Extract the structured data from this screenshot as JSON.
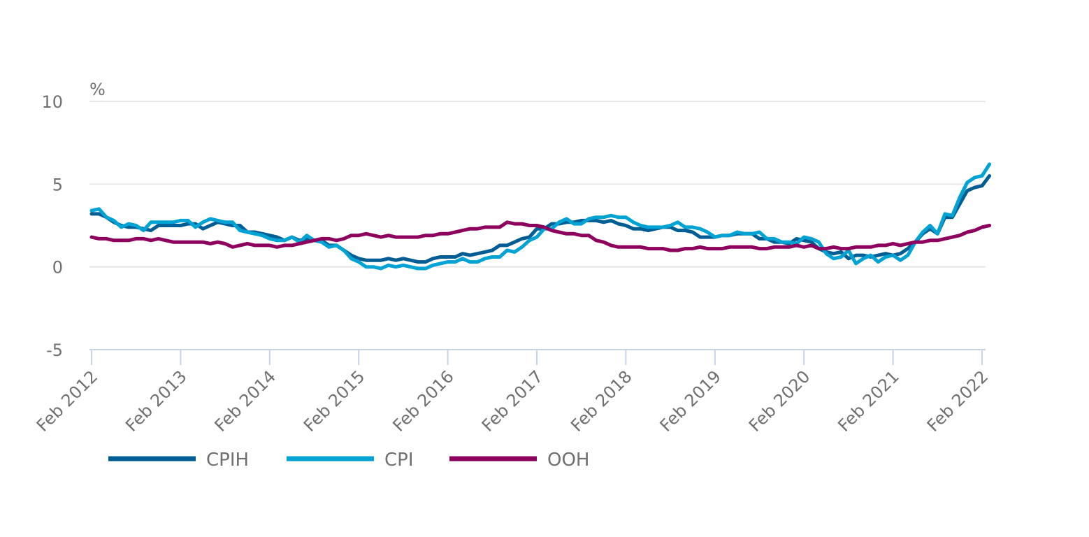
{
  "chart_data": {
    "type": "line",
    "title": "",
    "ylabel": "%",
    "xlabel": "",
    "ylim": [
      -5,
      10
    ],
    "yticks": [
      10,
      5,
      0,
      -5
    ],
    "xlim": [
      0,
      120
    ],
    "xticks": [
      {
        "label": "Feb 2012",
        "index": 0
      },
      {
        "label": "Feb 2013",
        "index": 12
      },
      {
        "label": "Feb 2014",
        "index": 24
      },
      {
        "label": "Feb 2015",
        "index": 36
      },
      {
        "label": "Feb 2016",
        "index": 48
      },
      {
        "label": "Feb 2017",
        "index": 60
      },
      {
        "label": "Feb 2018",
        "index": 72
      },
      {
        "label": "Feb 2019",
        "index": 84
      },
      {
        "label": "Feb 2020",
        "index": 96
      },
      {
        "label": "Feb 2021",
        "index": 108
      },
      {
        "label": "Feb 2022",
        "index": 120
      }
    ],
    "grid": true,
    "legend_position": "bottom-left",
    "series": [
      {
        "name": "CPIH",
        "color": "#005e94",
        "values": [
          3.2,
          3.2,
          3.0,
          2.7,
          2.5,
          2.4,
          2.4,
          2.3,
          2.2,
          2.5,
          2.5,
          2.5,
          2.5,
          2.6,
          2.6,
          2.3,
          2.5,
          2.7,
          2.6,
          2.5,
          2.5,
          2.1,
          2.1,
          2.0,
          1.9,
          1.8,
          1.6,
          1.8,
          1.6,
          1.7,
          1.6,
          1.6,
          1.3,
          1.3,
          1.0,
          0.7,
          0.5,
          0.4,
          0.4,
          0.4,
          0.5,
          0.4,
          0.5,
          0.4,
          0.3,
          0.3,
          0.5,
          0.6,
          0.6,
          0.6,
          0.8,
          0.7,
          0.8,
          0.9,
          1.0,
          1.3,
          1.3,
          1.5,
          1.7,
          1.8,
          2.3,
          2.3,
          2.6,
          2.6,
          2.7,
          2.7,
          2.8,
          2.8,
          2.8,
          2.7,
          2.8,
          2.6,
          2.5,
          2.3,
          2.3,
          2.2,
          2.3,
          2.4,
          2.4,
          2.2,
          2.2,
          2.1,
          1.8,
          1.8,
          1.8,
          1.9,
          1.9,
          2.0,
          2.0,
          2.0,
          1.7,
          1.7,
          1.5,
          1.5,
          1.4,
          1.7,
          1.6,
          1.5,
          1.1,
          0.9,
          0.8,
          0.9,
          0.5,
          0.7,
          0.7,
          0.6,
          0.7,
          0.8,
          0.7,
          0.8,
          1.1,
          1.5,
          2.0,
          2.3,
          2.0,
          3.0,
          3.0,
          3.8,
          4.6,
          4.8,
          4.9,
          5.5
        ]
      },
      {
        "name": "CPI",
        "color": "#00a3d3",
        "values": [
          3.4,
          3.5,
          3.0,
          2.8,
          2.4,
          2.6,
          2.5,
          2.2,
          2.7,
          2.7,
          2.7,
          2.7,
          2.8,
          2.8,
          2.4,
          2.7,
          2.9,
          2.8,
          2.7,
          2.7,
          2.2,
          2.1,
          2.0,
          1.9,
          1.7,
          1.6,
          1.6,
          1.8,
          1.5,
          1.9,
          1.6,
          1.5,
          1.2,
          1.3,
          1.0,
          0.5,
          0.3,
          0.0,
          0.0,
          -0.1,
          0.1,
          0.0,
          0.1,
          0.0,
          -0.1,
          -0.1,
          0.1,
          0.2,
          0.3,
          0.3,
          0.5,
          0.3,
          0.3,
          0.5,
          0.6,
          0.6,
          1.0,
          0.9,
          1.2,
          1.6,
          1.8,
          2.3,
          2.3,
          2.7,
          2.9,
          2.6,
          2.6,
          2.9,
          3.0,
          3.0,
          3.1,
          3.0,
          3.0,
          2.7,
          2.5,
          2.4,
          2.4,
          2.4,
          2.5,
          2.7,
          2.4,
          2.4,
          2.3,
          2.1,
          1.8,
          1.9,
          1.9,
          2.1,
          2.0,
          2.0,
          2.1,
          1.7,
          1.7,
          1.5,
          1.5,
          1.4,
          1.8,
          1.7,
          1.5,
          0.8,
          0.5,
          0.6,
          1.0,
          0.2,
          0.5,
          0.7,
          0.3,
          0.6,
          0.7,
          0.4,
          0.7,
          1.5,
          2.1,
          2.5,
          2.0,
          3.2,
          3.1,
          4.2,
          5.1,
          5.4,
          5.5,
          6.2
        ]
      },
      {
        "name": "OOH",
        "color": "#8e005e",
        "values": [
          1.8,
          1.7,
          1.7,
          1.6,
          1.6,
          1.6,
          1.7,
          1.7,
          1.6,
          1.7,
          1.6,
          1.5,
          1.5,
          1.5,
          1.5,
          1.5,
          1.4,
          1.5,
          1.4,
          1.2,
          1.3,
          1.4,
          1.3,
          1.3,
          1.3,
          1.2,
          1.3,
          1.3,
          1.4,
          1.5,
          1.6,
          1.7,
          1.7,
          1.6,
          1.7,
          1.9,
          1.9,
          2.0,
          1.9,
          1.8,
          1.9,
          1.8,
          1.8,
          1.8,
          1.8,
          1.9,
          1.9,
          2.0,
          2.0,
          2.1,
          2.2,
          2.3,
          2.3,
          2.4,
          2.4,
          2.4,
          2.7,
          2.6,
          2.6,
          2.5,
          2.5,
          2.4,
          2.2,
          2.1,
          2.0,
          2.0,
          1.9,
          1.9,
          1.6,
          1.5,
          1.3,
          1.2,
          1.2,
          1.2,
          1.2,
          1.1,
          1.1,
          1.1,
          1.0,
          1.0,
          1.1,
          1.1,
          1.2,
          1.1,
          1.1,
          1.1,
          1.2,
          1.2,
          1.2,
          1.2,
          1.1,
          1.1,
          1.2,
          1.2,
          1.2,
          1.3,
          1.2,
          1.3,
          1.1,
          1.1,
          1.2,
          1.1,
          1.1,
          1.2,
          1.2,
          1.2,
          1.3,
          1.3,
          1.4,
          1.3,
          1.4,
          1.5,
          1.5,
          1.6,
          1.6,
          1.7,
          1.8,
          1.9,
          2.1,
          2.2,
          2.4,
          2.5
        ]
      }
    ]
  }
}
